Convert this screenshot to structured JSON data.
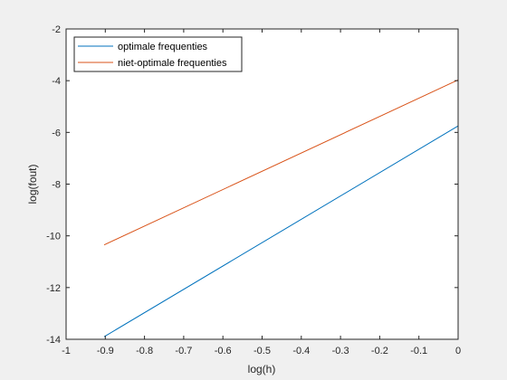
{
  "chart_data": {
    "type": "line",
    "xlabel": "log(h)",
    "ylabel": "log(fout)",
    "xlim": [
      -1,
      0
    ],
    "ylim": [
      -14,
      -2
    ],
    "xticks": [
      -1,
      -0.9,
      -0.8,
      -0.7,
      -0.6,
      -0.5,
      -0.4,
      -0.3,
      -0.2,
      -0.1,
      0
    ],
    "yticks": [
      -14,
      -12,
      -10,
      -8,
      -6,
      -4,
      -2
    ],
    "xtick_labels": [
      "-1",
      "-0.9",
      "-0.8",
      "-0.7",
      "-0.6",
      "-0.5",
      "-0.4",
      "-0.3",
      "-0.2",
      "-0.1",
      "0"
    ],
    "ytick_labels": [
      "-14",
      "-12",
      "-10",
      "-8",
      "-6",
      "-4",
      "-2"
    ],
    "grid": false,
    "legend_position": "top-left",
    "series": [
      {
        "name": "optimale frequenties",
        "color": "#0072BD",
        "x": [
          -0.903,
          0
        ],
        "y": [
          -13.9,
          -5.75
        ]
      },
      {
        "name": "niet-optimale frequenties",
        "color": "#D95319",
        "x": [
          -0.903,
          0
        ],
        "y": [
          -10.35,
          -3.97
        ]
      }
    ]
  }
}
